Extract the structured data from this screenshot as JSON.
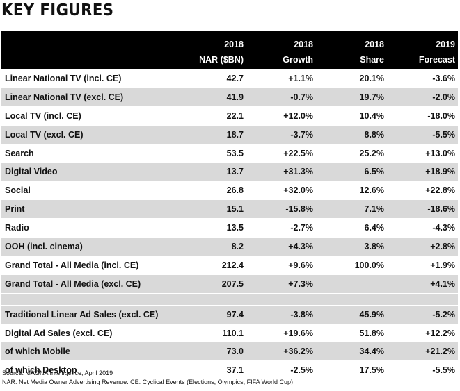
{
  "title": "KEY FIGURES",
  "header": {
    "row1": [
      "2018",
      "2018",
      "2018",
      "2019"
    ],
    "row2": [
      "NAR ($BN)",
      "Growth",
      "Share",
      "Forecast"
    ]
  },
  "rows": [
    {
      "label": "Linear National TV (incl. CE)",
      "nar": "42.7",
      "growth": "+1.1%",
      "share": "20.1%",
      "forecast": "-3.6%"
    },
    {
      "label": "Linear National TV (excl. CE)",
      "nar": "41.9",
      "growth": "-0.7%",
      "share": "19.7%",
      "forecast": "-2.0%"
    },
    {
      "label": "Local TV (incl. CE)",
      "nar": "22.1",
      "growth": "+12.0%",
      "share": "10.4%",
      "forecast": "-18.0%"
    },
    {
      "label": "Local TV (excl. CE)",
      "nar": "18.7",
      "growth": "-3.7%",
      "share": "8.8%",
      "forecast": "-5.5%"
    },
    {
      "label": "Search",
      "nar": "53.5",
      "growth": "+22.5%",
      "share": "25.2%",
      "forecast": "+13.0%"
    },
    {
      "label": "Digital Video",
      "nar": "13.7",
      "growth": "+31.3%",
      "share": "6.5%",
      "forecast": "+18.9%"
    },
    {
      "label": "Social",
      "nar": "26.8",
      "growth": "+32.0%",
      "share": "12.6%",
      "forecast": "+22.8%"
    },
    {
      "label": "Print",
      "nar": "15.1",
      "growth": "-15.8%",
      "share": "7.1%",
      "forecast": "-18.6%"
    },
    {
      "label": "Radio",
      "nar": "13.5",
      "growth": "-2.7%",
      "share": "6.4%",
      "forecast": "-4.3%"
    },
    {
      "label": "OOH (incl. cinema)",
      "nar": "8.2",
      "growth": "+4.3%",
      "share": "3.8%",
      "forecast": "+2.8%"
    },
    {
      "label": "Grand Total - All Media (incl. CE)",
      "nar": "212.4",
      "growth": "+9.6%",
      "share": "100.0%",
      "forecast": "+1.9%"
    },
    {
      "label": "Grand Total - All Media (excl. CE)",
      "nar": "207.5",
      "growth": "+7.3%",
      "share": "",
      "forecast": "+4.1%"
    }
  ],
  "rows2": [
    {
      "label": "Traditional Linear Ad Sales (excl. CE)",
      "nar": "97.4",
      "growth": "-3.8%",
      "share": "45.9%",
      "forecast": "-5.2%"
    },
    {
      "label": "Digital Ad Sales (excl. CE)",
      "nar": "110.1",
      "growth": "+19.6%",
      "share": "51.8%",
      "forecast": "+12.2%"
    },
    {
      "label": " of which Mobile",
      "nar": "73.0",
      "growth": "+36.2%",
      "share": "34.4%",
      "forecast": "+21.2%"
    },
    {
      "label": " of which Desktop",
      "nar": "37.1",
      "growth": "-2.5%",
      "share": "17.5%",
      "forecast": "-5.5%"
    }
  ],
  "footnotes": {
    "source": "Source: MAGNA Intelligence, April 2019",
    "nar": "NAR: Net Media Owner Advertising Revenue. CE: Cyclical Events (Elections, Olympics, FIFA World Cup)"
  }
}
